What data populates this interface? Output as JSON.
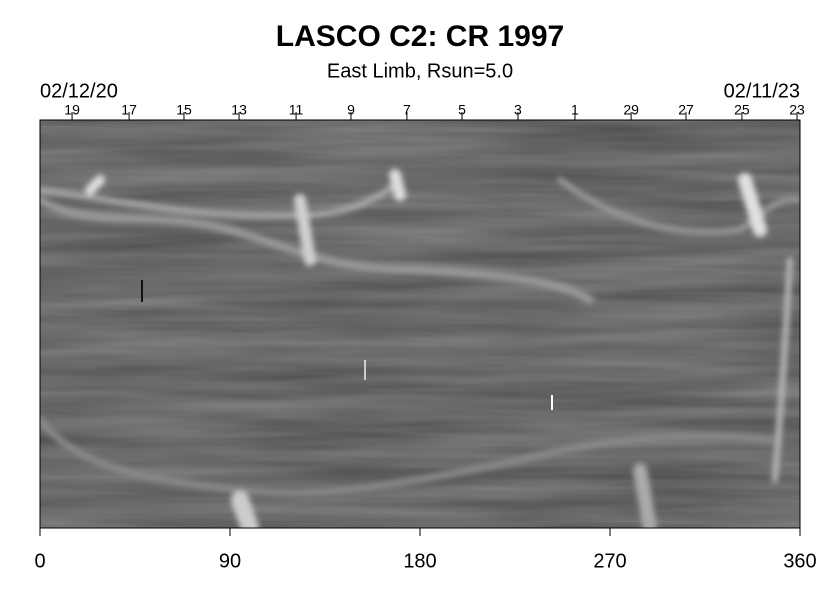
{
  "chart_data": {
    "type": "image",
    "title": "LASCO C2: CR 1997",
    "subtitle": "East Limb, Rsun=5.0",
    "start_date": "02/12/20",
    "end_date": "02/11/23",
    "xlim": [
      0,
      360
    ],
    "xticks": [
      0,
      90,
      180,
      270,
      360
    ],
    "top_ticks": [
      {
        "value": 15.2,
        "label": "19"
      },
      {
        "value": 42.2,
        "label": "17"
      },
      {
        "value": 68.2,
        "label": "15"
      },
      {
        "value": 94.3,
        "label": "13"
      },
      {
        "value": 121.3,
        "label": "11"
      },
      {
        "value": 147.3,
        "label": "9"
      },
      {
        "value": 173.8,
        "label": "7"
      },
      {
        "value": 199.9,
        "label": "5"
      },
      {
        "value": 226.4,
        "label": "3"
      },
      {
        "value": 253.4,
        "label": "1"
      },
      {
        "value": 280,
        "label": "29"
      },
      {
        "value": 306,
        "label": "27"
      },
      {
        "value": 332.5,
        "label": "25"
      },
      {
        "value": 358.6,
        "label": "23"
      }
    ]
  }
}
